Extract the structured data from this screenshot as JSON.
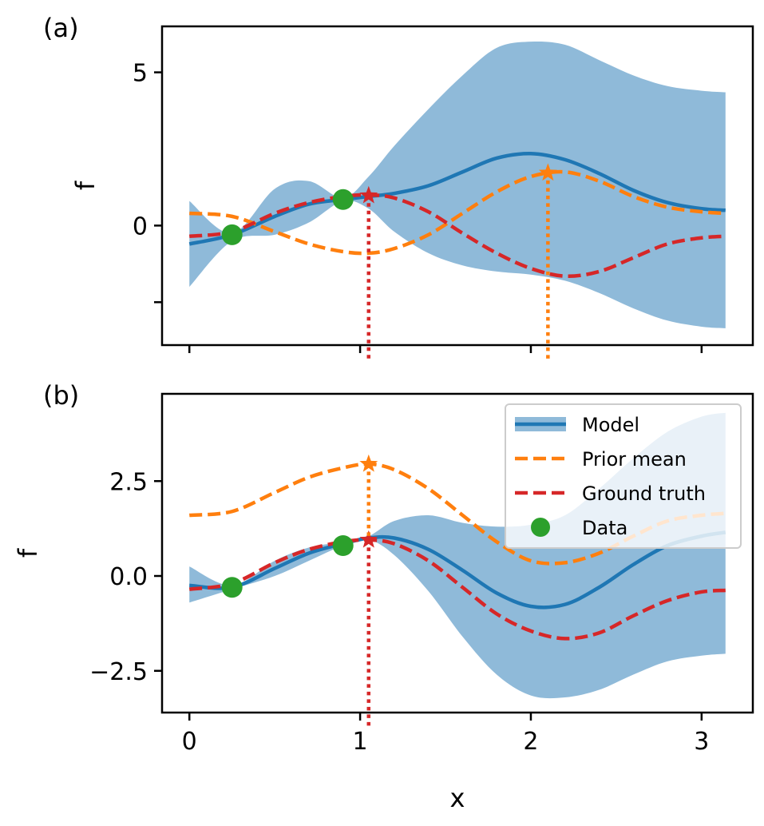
{
  "chart_data": [
    {
      "type": "line",
      "panel_label": "(a)",
      "xlabel": "",
      "ylabel": "f",
      "xlim": [
        -0.16,
        3.3
      ],
      "ylim": [
        -3.9,
        6.5
      ],
      "xticks": [
        0,
        1,
        2,
        3
      ],
      "xtick_labels": [
        "",
        "",
        "",
        ""
      ],
      "yticks": [
        -2.5,
        0,
        5
      ],
      "ytick_labels": [
        "",
        "0",
        "5"
      ],
      "colors": {
        "model": "#1f77b4",
        "band": "#8fbad9",
        "prior": "#ff7f0e",
        "truth": "#d62728",
        "data": "#2ca02c"
      },
      "x": [
        0,
        0.25,
        0.5,
        0.7,
        0.9,
        1.05,
        1.2,
        1.4,
        1.6,
        1.8,
        2.0,
        2.2,
        2.4,
        2.6,
        2.8,
        3.0,
        3.14
      ],
      "series": [
        {
          "name": "Model",
          "role": "mean",
          "values": [
            -0.6,
            -0.3,
            0.3,
            0.7,
            0.85,
            0.95,
            1.05,
            1.3,
            1.75,
            2.2,
            2.35,
            2.15,
            1.7,
            1.15,
            0.75,
            0.55,
            0.5
          ]
        },
        {
          "name": "Model",
          "role": "upper",
          "values": [
            0.8,
            -0.25,
            1.2,
            1.45,
            0.9,
            1.6,
            2.6,
            3.8,
            4.9,
            5.8,
            6.0,
            5.9,
            5.4,
            4.9,
            4.55,
            4.4,
            4.35
          ]
        },
        {
          "name": "Model",
          "role": "lower",
          "values": [
            -2.0,
            -0.5,
            -0.3,
            0.1,
            0.8,
            0.55,
            -0.2,
            -0.9,
            -1.3,
            -1.5,
            -1.6,
            -1.8,
            -2.2,
            -2.7,
            -3.1,
            -3.3,
            -3.35
          ]
        },
        {
          "name": "Prior mean",
          "role": "prior",
          "values": [
            0.4,
            0.3,
            -0.2,
            -0.6,
            -0.85,
            -0.9,
            -0.75,
            -0.3,
            0.4,
            1.1,
            1.6,
            1.75,
            1.45,
            0.95,
            0.6,
            0.45,
            0.4
          ]
        },
        {
          "name": "Ground truth",
          "role": "truth",
          "values": [
            -0.35,
            -0.2,
            0.4,
            0.75,
            0.95,
            1.0,
            0.9,
            0.45,
            -0.25,
            -0.9,
            -1.4,
            -1.65,
            -1.5,
            -1.05,
            -0.6,
            -0.4,
            -0.35
          ]
        }
      ],
      "data_points": [
        {
          "x": 0.25,
          "y": -0.3
        },
        {
          "x": 0.9,
          "y": 0.85
        }
      ],
      "truth_max": {
        "x": 1.05,
        "y": 0.98
      },
      "prior_max": {
        "x": 2.1,
        "y": 1.72
      }
    },
    {
      "type": "line",
      "panel_label": "(b)",
      "xlabel": "x",
      "ylabel": "f",
      "xlim": [
        -0.16,
        3.3
      ],
      "ylim": [
        -3.6,
        4.8
      ],
      "xticks": [
        0,
        1,
        2,
        3
      ],
      "xtick_labels": [
        "0",
        "1",
        "2",
        "3"
      ],
      "yticks": [
        -2.5,
        0,
        2.5
      ],
      "ytick_labels": [
        "−2.5",
        "0.0",
        "2.5"
      ],
      "colors": {
        "model": "#1f77b4",
        "band": "#8fbad9",
        "prior": "#ff7f0e",
        "truth": "#d62728",
        "data": "#2ca02c"
      },
      "x": [
        0,
        0.25,
        0.5,
        0.7,
        0.9,
        1.05,
        1.2,
        1.4,
        1.6,
        1.8,
        2.0,
        2.2,
        2.4,
        2.6,
        2.8,
        3.0,
        3.14
      ],
      "series": [
        {
          "name": "Model",
          "role": "mean",
          "values": [
            -0.25,
            -0.3,
            0.2,
            0.6,
            0.85,
            1.0,
            1.0,
            0.7,
            0.15,
            -0.45,
            -0.8,
            -0.75,
            -0.3,
            0.3,
            0.8,
            1.05,
            1.15
          ]
        },
        {
          "name": "Model",
          "role": "upper",
          "values": [
            0.25,
            -0.25,
            0.4,
            0.75,
            0.9,
            1.05,
            1.45,
            1.6,
            1.4,
            1.3,
            1.35,
            1.6,
            2.3,
            3.1,
            3.8,
            4.2,
            4.3
          ]
        },
        {
          "name": "Model",
          "role": "lower",
          "values": [
            -0.7,
            -0.35,
            0.0,
            0.4,
            0.8,
            0.95,
            0.55,
            -0.4,
            -1.6,
            -2.6,
            -3.15,
            -3.2,
            -3.0,
            -2.6,
            -2.25,
            -2.1,
            -2.05
          ]
        },
        {
          "name": "Prior mean",
          "role": "prior",
          "values": [
            1.6,
            1.7,
            2.2,
            2.6,
            2.85,
            2.95,
            2.8,
            2.3,
            1.6,
            0.9,
            0.4,
            0.35,
            0.6,
            1.05,
            1.45,
            1.6,
            1.65
          ]
        },
        {
          "name": "Ground truth",
          "role": "truth",
          "values": [
            -0.35,
            -0.2,
            0.35,
            0.7,
            0.9,
            0.95,
            0.85,
            0.4,
            -0.3,
            -1.0,
            -1.45,
            -1.65,
            -1.5,
            -1.05,
            -0.65,
            -0.42,
            -0.38
          ]
        }
      ],
      "data_points": [
        {
          "x": 0.25,
          "y": -0.3
        },
        {
          "x": 0.9,
          "y": 0.8
        }
      ],
      "truth_max": {
        "x": 1.05,
        "y": 0.95
      },
      "prior_max": {
        "x": 1.05,
        "y": 2.95
      },
      "legend": {
        "placement": "top-right",
        "entries": [
          {
            "label": "Model",
            "style": "band"
          },
          {
            "label": "Prior mean",
            "style": "dash-orange"
          },
          {
            "label": "Ground truth",
            "style": "dash-red"
          },
          {
            "label": "Data",
            "style": "dot-green"
          }
        ]
      }
    }
  ]
}
